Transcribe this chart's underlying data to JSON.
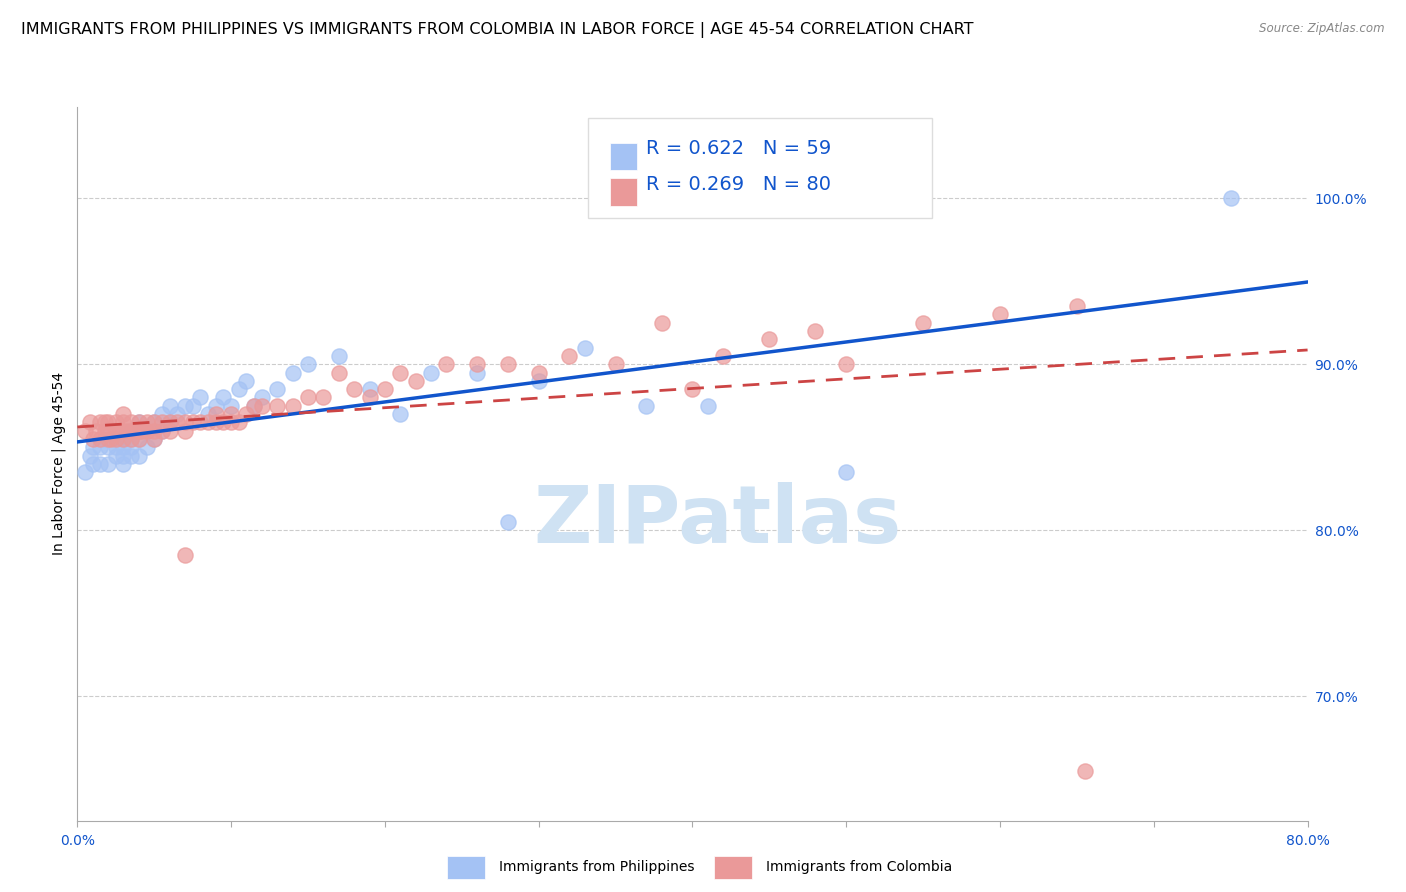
{
  "title": "IMMIGRANTS FROM PHILIPPINES VS IMMIGRANTS FROM COLOMBIA IN LABOR FORCE | AGE 45-54 CORRELATION CHART",
  "source": "Source: ZipAtlas.com",
  "ylabel": "In Labor Force | Age 45-54",
  "xlim": [
    0.0,
    0.8
  ],
  "ylim": [
    0.625,
    1.055
  ],
  "philippines_R": 0.622,
  "philippines_N": 59,
  "colombia_R": 0.269,
  "colombia_N": 80,
  "philippines_color": "#a4c2f4",
  "colombia_color": "#ea9999",
  "philippines_line_color": "#1155cc",
  "colombia_line_color": "#cc4444",
  "background_color": "#ffffff",
  "grid_color": "#cccccc",
  "watermark_text": "ZIPatlas",
  "watermark_color": "#cfe2f3",
  "title_fontsize": 11.5,
  "axis_label_fontsize": 10,
  "tick_fontsize": 10,
  "legend_fontsize": 14,
  "ytick_values": [
    0.7,
    0.8,
    0.9,
    1.0
  ],
  "ytick_labels": [
    "70.0%",
    "80.0%",
    "90.0%",
    "100.0%"
  ],
  "philippines_x": [
    0.005,
    0.008,
    0.01,
    0.01,
    0.015,
    0.015,
    0.018,
    0.02,
    0.02,
    0.025,
    0.025,
    0.025,
    0.03,
    0.03,
    0.03,
    0.03,
    0.035,
    0.035,
    0.035,
    0.035,
    0.04,
    0.04,
    0.04,
    0.04,
    0.045,
    0.045,
    0.05,
    0.05,
    0.055,
    0.055,
    0.06,
    0.06,
    0.065,
    0.07,
    0.075,
    0.08,
    0.085,
    0.09,
    0.095,
    0.1,
    0.105,
    0.11,
    0.115,
    0.12,
    0.13,
    0.14,
    0.15,
    0.17,
    0.19,
    0.21,
    0.23,
    0.26,
    0.28,
    0.3,
    0.33,
    0.37,
    0.41,
    0.5,
    0.75
  ],
  "philippines_y": [
    0.835,
    0.845,
    0.84,
    0.85,
    0.84,
    0.85,
    0.855,
    0.84,
    0.85,
    0.845,
    0.85,
    0.855,
    0.84,
    0.845,
    0.85,
    0.855,
    0.845,
    0.85,
    0.855,
    0.86,
    0.845,
    0.855,
    0.86,
    0.865,
    0.85,
    0.86,
    0.855,
    0.865,
    0.86,
    0.87,
    0.865,
    0.875,
    0.87,
    0.875,
    0.875,
    0.88,
    0.87,
    0.875,
    0.88,
    0.875,
    0.885,
    0.89,
    0.875,
    0.88,
    0.885,
    0.895,
    0.9,
    0.905,
    0.885,
    0.87,
    0.895,
    0.895,
    0.805,
    0.89,
    0.91,
    0.875,
    0.875,
    0.835,
    1.0
  ],
  "colombia_x": [
    0.005,
    0.008,
    0.01,
    0.012,
    0.015,
    0.015,
    0.018,
    0.018,
    0.02,
    0.02,
    0.02,
    0.022,
    0.025,
    0.025,
    0.025,
    0.028,
    0.03,
    0.03,
    0.03,
    0.03,
    0.032,
    0.035,
    0.035,
    0.035,
    0.038,
    0.04,
    0.04,
    0.04,
    0.042,
    0.045,
    0.045,
    0.05,
    0.05,
    0.05,
    0.055,
    0.055,
    0.06,
    0.06,
    0.065,
    0.07,
    0.07,
    0.075,
    0.08,
    0.085,
    0.09,
    0.09,
    0.095,
    0.1,
    0.1,
    0.105,
    0.11,
    0.115,
    0.12,
    0.13,
    0.14,
    0.15,
    0.16,
    0.17,
    0.18,
    0.19,
    0.2,
    0.21,
    0.22,
    0.24,
    0.26,
    0.28,
    0.3,
    0.32,
    0.35,
    0.38,
    0.4,
    0.42,
    0.45,
    0.48,
    0.5,
    0.55,
    0.6,
    0.65,
    0.07,
    0.655
  ],
  "colombia_y": [
    0.86,
    0.865,
    0.855,
    0.86,
    0.855,
    0.865,
    0.86,
    0.865,
    0.855,
    0.86,
    0.865,
    0.855,
    0.855,
    0.86,
    0.865,
    0.86,
    0.855,
    0.86,
    0.865,
    0.87,
    0.86,
    0.855,
    0.86,
    0.865,
    0.86,
    0.855,
    0.86,
    0.865,
    0.86,
    0.86,
    0.865,
    0.855,
    0.86,
    0.865,
    0.86,
    0.865,
    0.86,
    0.865,
    0.865,
    0.86,
    0.865,
    0.865,
    0.865,
    0.865,
    0.865,
    0.87,
    0.865,
    0.865,
    0.87,
    0.865,
    0.87,
    0.875,
    0.875,
    0.875,
    0.875,
    0.88,
    0.88,
    0.895,
    0.885,
    0.88,
    0.885,
    0.895,
    0.89,
    0.9,
    0.9,
    0.9,
    0.895,
    0.905,
    0.9,
    0.925,
    0.885,
    0.905,
    0.915,
    0.92,
    0.9,
    0.925,
    0.93,
    0.935,
    0.785,
    0.655
  ]
}
